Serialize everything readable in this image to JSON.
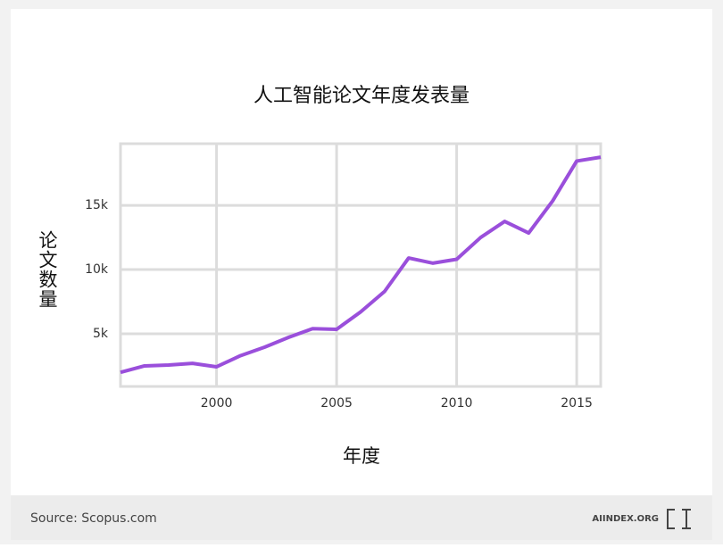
{
  "chart_data": {
    "type": "line",
    "title": "人工智能论文年度发表量",
    "x_label": "年度",
    "y_label": "论文数量",
    "x": [
      1996,
      1997,
      1998,
      1999,
      2000,
      2001,
      2002,
      2003,
      2004,
      2005,
      2006,
      2007,
      2008,
      2009,
      2010,
      2011,
      2012,
      2013,
      2014,
      2015,
      2016
    ],
    "series": [
      {
        "name": "论文数量",
        "color": "#9a4fdb",
        "values": [
          2000,
          2500,
          2570,
          2700,
          2430,
          3300,
          3960,
          4720,
          5400,
          5350,
          6700,
          8300,
          10900,
          10500,
          10800,
          12500,
          13750,
          12850,
          15350,
          18450,
          18750
        ]
      }
    ],
    "xlim": [
      1996,
      2016
    ],
    "xticks": [
      2000,
      2005,
      2010,
      2015
    ],
    "ylim": [
      900,
      19800
    ],
    "yticks": [
      {
        "value": 5000,
        "label": "5k"
      },
      {
        "value": 10000,
        "label": "10k"
      },
      {
        "value": 15000,
        "label": "15k"
      }
    ],
    "grid": true,
    "source": "Source: Scopus.com",
    "brand": "AIINDEX.ORG"
  }
}
